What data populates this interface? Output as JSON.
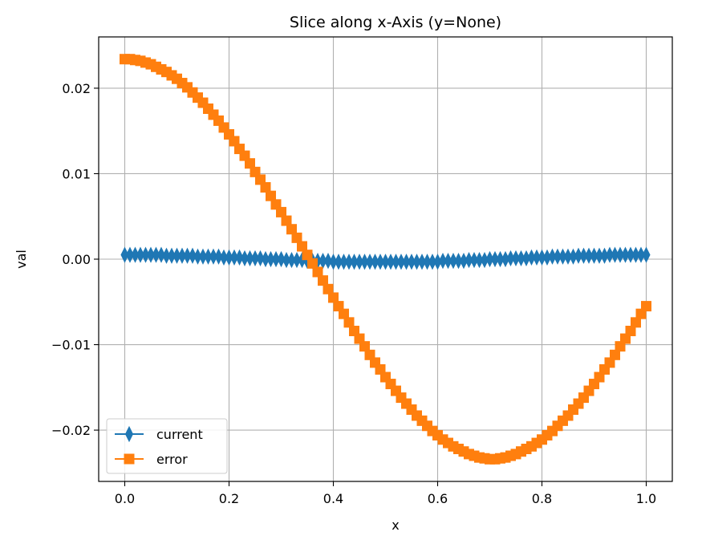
{
  "chart_data": {
    "type": "line",
    "title": "Slice along x-Axis (y=None)",
    "xlabel": "x",
    "ylabel": "val",
    "xlim": [
      -0.05,
      1.05
    ],
    "ylim": [
      -0.026,
      0.026
    ],
    "xticks": [
      0.0,
      0.2,
      0.4,
      0.6,
      0.8,
      1.0
    ],
    "xtick_labels": [
      "0.0",
      "0.2",
      "0.4",
      "0.6",
      "0.8",
      "1.0"
    ],
    "yticks": [
      -0.02,
      -0.01,
      0.0,
      0.01,
      0.02
    ],
    "ytick_labels": [
      "−0.02",
      "−0.01",
      "0.00",
      "0.01",
      "0.02"
    ],
    "grid": true,
    "legend_position": "lower-left",
    "x": [
      0.0,
      0.01,
      0.02,
      0.03,
      0.04,
      0.05,
      0.06,
      0.07,
      0.08,
      0.09,
      0.1,
      0.11,
      0.12,
      0.13,
      0.14,
      0.15,
      0.16,
      0.17,
      0.18,
      0.19,
      0.2,
      0.21,
      0.22,
      0.23,
      0.24,
      0.25,
      0.26,
      0.27,
      0.28,
      0.29,
      0.3,
      0.31,
      0.32,
      0.33,
      0.34,
      0.35,
      0.36,
      0.37,
      0.38,
      0.39,
      0.4,
      0.41,
      0.42,
      0.43,
      0.44,
      0.45,
      0.46,
      0.47,
      0.48,
      0.49,
      0.5,
      0.51,
      0.52,
      0.53,
      0.54,
      0.55,
      0.56,
      0.57,
      0.58,
      0.59,
      0.6,
      0.61,
      0.62,
      0.63,
      0.64,
      0.65,
      0.66,
      0.67,
      0.68,
      0.69,
      0.7,
      0.71,
      0.72,
      0.73,
      0.74,
      0.75,
      0.76,
      0.77,
      0.78,
      0.79,
      0.8,
      0.81,
      0.82,
      0.83,
      0.84,
      0.85,
      0.86,
      0.87,
      0.88,
      0.89,
      0.9,
      0.91,
      0.92,
      0.93,
      0.94,
      0.95,
      0.96,
      0.97,
      0.98,
      0.99,
      1.0
    ],
    "series": [
      {
        "name": "current",
        "color": "#1f77b4",
        "marker": "thin-diamond",
        "values": [
          0.0005,
          0.0005,
          0.0005,
          0.0005,
          0.0005,
          0.0005,
          0.0005,
          0.0005,
          0.0004,
          0.0004,
          0.0004,
          0.0004,
          0.0004,
          0.0004,
          0.0003,
          0.0003,
          0.0003,
          0.0003,
          0.0003,
          0.0002,
          0.0002,
          0.0002,
          0.0002,
          0.0001,
          0.0001,
          0.0001,
          0.0001,
          0.0,
          0.0,
          -0.0,
          -0.0,
          -0.0001,
          -0.0001,
          -0.0001,
          -0.0001,
          -0.0002,
          -0.0002,
          -0.0002,
          -0.0002,
          -0.0002,
          -0.0003,
          -0.0003,
          -0.0003,
          -0.0003,
          -0.0003,
          -0.0003,
          -0.0003,
          -0.0003,
          -0.0003,
          -0.0003,
          -0.0003,
          -0.0003,
          -0.0003,
          -0.0003,
          -0.0003,
          -0.0003,
          -0.0003,
          -0.0003,
          -0.0003,
          -0.0003,
          -0.0003,
          -0.0002,
          -0.0002,
          -0.0002,
          -0.0002,
          -0.0002,
          -0.0001,
          -0.0001,
          -0.0001,
          -0.0001,
          -0.0,
          -0.0,
          0.0,
          0.0,
          0.0001,
          0.0001,
          0.0001,
          0.0001,
          0.0002,
          0.0002,
          0.0002,
          0.0002,
          0.0003,
          0.0003,
          0.0003,
          0.0003,
          0.0003,
          0.0004,
          0.0004,
          0.0004,
          0.0004,
          0.0004,
          0.0004,
          0.0005,
          0.0005,
          0.0005,
          0.0005,
          0.0005,
          0.0005,
          0.0005,
          0.0005
        ]
      },
      {
        "name": "error",
        "color": "#ff7f0e",
        "marker": "square",
        "values": [
          0.0234,
          0.0234,
          0.0233,
          0.0232,
          0.023,
          0.0228,
          0.0225,
          0.0222,
          0.0219,
          0.0215,
          0.0211,
          0.0206,
          0.0201,
          0.0195,
          0.0189,
          0.0183,
          0.0176,
          0.0169,
          0.0162,
          0.0154,
          0.0146,
          0.0138,
          0.0129,
          0.0121,
          0.0112,
          0.0102,
          0.0093,
          0.0084,
          0.0074,
          0.0064,
          0.0055,
          0.0045,
          0.0035,
          0.0025,
          0.0015,
          0.0005,
          -0.0005,
          -0.0015,
          -0.0025,
          -0.0035,
          -0.0045,
          -0.0055,
          -0.0064,
          -0.0074,
          -0.0084,
          -0.0093,
          -0.0102,
          -0.0112,
          -0.0121,
          -0.0129,
          -0.0138,
          -0.0146,
          -0.0154,
          -0.0162,
          -0.0169,
          -0.0176,
          -0.0183,
          -0.0189,
          -0.0195,
          -0.0201,
          -0.0206,
          -0.0211,
          -0.0215,
          -0.0219,
          -0.0222,
          -0.0225,
          -0.0228,
          -0.023,
          -0.0232,
          -0.0233,
          -0.0234,
          -0.0234,
          -0.0233,
          -0.0232,
          -0.023,
          -0.0228,
          -0.0225,
          -0.0222,
          -0.0219,
          -0.0215,
          -0.0211,
          -0.0206,
          -0.0201,
          -0.0195,
          -0.0189,
          -0.0183,
          -0.0176,
          -0.0169,
          -0.0162,
          -0.0154,
          -0.0146,
          -0.0138,
          -0.0129,
          -0.0121,
          -0.0112,
          -0.0102,
          -0.0093,
          -0.0084,
          -0.0074,
          -0.0064,
          -0.0055
        ]
      }
    ]
  }
}
